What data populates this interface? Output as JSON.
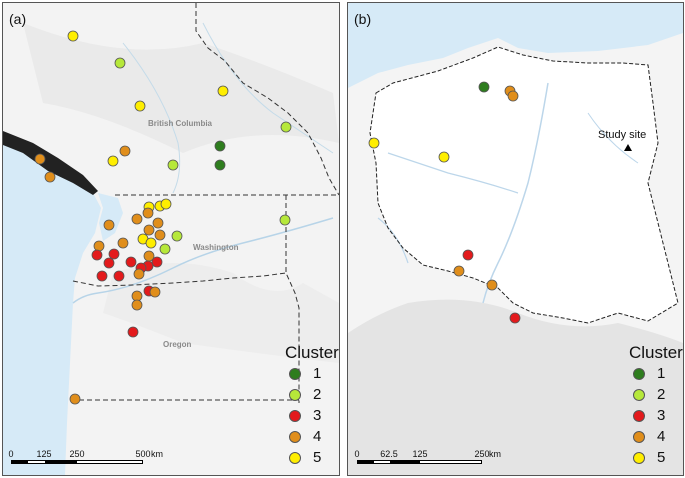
{
  "panel_a": {
    "label": "(a)",
    "regions": [
      "British Columbia",
      "Washington",
      "Oregon"
    ],
    "legend": {
      "title": "Cluster",
      "items": [
        "1",
        "2",
        "3",
        "4",
        "5"
      ]
    },
    "scale": {
      "ticks": [
        "0",
        "125",
        "250",
        "500"
      ],
      "unit": "km"
    }
  },
  "panel_b": {
    "label": "(b)",
    "study_site": "Study site",
    "legend": {
      "title": "Cluster",
      "items": [
        "1",
        "2",
        "3",
        "4",
        "5"
      ]
    },
    "scale": {
      "ticks": [
        "0",
        "62.5",
        "125",
        "250"
      ],
      "unit": "km"
    }
  },
  "cluster_colors": {
    "1": "#2e7d1e",
    "2": "#b6e83a",
    "3": "#e31a1c",
    "4": "#e08e1b",
    "5": "#ffee00"
  }
}
